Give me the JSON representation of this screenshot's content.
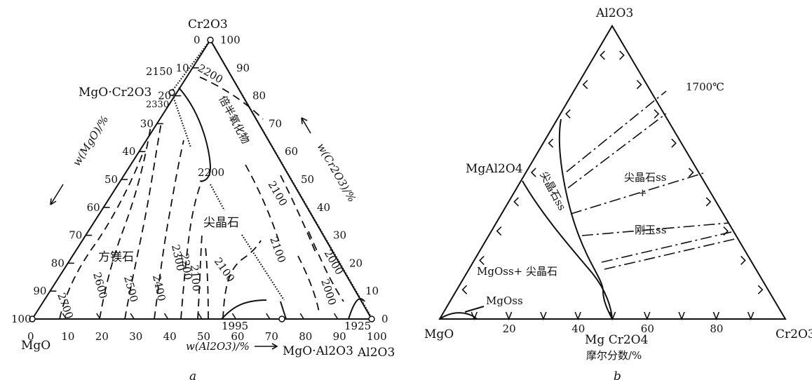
{
  "figure": {
    "a": {
      "caption": "a",
      "vertices": {
        "top": "Cr2O3",
        "bottom_left": "MgO",
        "bottom_right": "Al2O3"
      },
      "compounds": {
        "mgo_cr2o3": "MgO·Cr2O3",
        "mgo_al2o3": "MgO·Al2O3"
      },
      "axis_titles": {
        "left": "w(MgO)/%",
        "right": "w(Cr2O3)/%",
        "bottom": "w(Al2O3)/%"
      },
      "ticks": {
        "bottom": [
          "0",
          "10",
          "20",
          "30",
          "40",
          "50",
          "60",
          "70",
          "80",
          "90",
          "100"
        ],
        "left": [
          "0",
          "10",
          "20",
          "30",
          "40",
          "50",
          "60",
          "70",
          "80",
          "90",
          "100"
        ],
        "right": [
          "100",
          "90",
          "80",
          "70",
          "60",
          "50",
          "40",
          "30",
          "20",
          "10",
          "0"
        ]
      },
      "field_labels": {
        "periclase": "方镁石",
        "spinel": "尖晶石",
        "sesquioxide": "倍半氧化物"
      },
      "temperatures": {
        "t2150": "2150",
        "t2200_top": "2200",
        "t2330": "2330",
        "t2200_mid": "2200",
        "t2100_a": "2100",
        "t2100_b": "2100",
        "t2000_a": "2000",
        "t2000_b": "2000",
        "t2700": "2700",
        "t2600": "2600",
        "t2500": "2500",
        "t2400": "2400",
        "t2300": "2300",
        "t2200_low": "2200",
        "t2100_low": "2100",
        "t2100_low2": "2100",
        "t1995": "1995",
        "t1925": "1925"
      }
    },
    "b": {
      "caption": "b",
      "vertices": {
        "top": "Al2O3",
        "bottom_left": "MgO",
        "bottom_right": "Cr2O3"
      },
      "compounds": {
        "mgal2o4": "MgAl2O4",
        "mgcr2o4": "Mg Cr2O4"
      },
      "temperature": "1700℃",
      "axis_title": "摩尔分数/%",
      "ticks": [
        "20",
        "40",
        "60",
        "80"
      ],
      "field_labels": {
        "spinel_ss": "尖晶石ss",
        "spinel_ss_plus": "尖晶石ss",
        "plus": "+",
        "corundum_ss": "刚玉ss",
        "mgoss_spinel": "MgOss+ 尖晶石",
        "mgoss": "MgOss"
      }
    }
  }
}
